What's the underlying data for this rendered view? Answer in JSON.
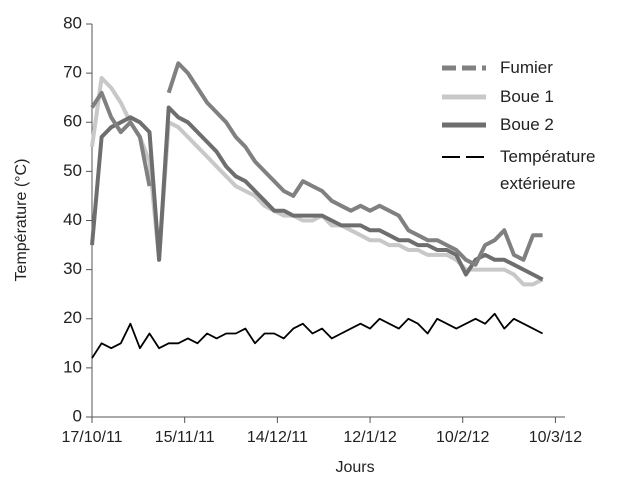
{
  "chart_data": {
    "type": "line",
    "xlabel": "Jours",
    "ylabel": "Température (°C)",
    "x": [
      "2011-10-17",
      "2011-10-20",
      "2011-10-23",
      "2011-10-26",
      "2011-10-29",
      "2011-11-01",
      "2011-11-04",
      "2011-11-07",
      "2011-11-10",
      "2011-11-13",
      "2011-11-16",
      "2011-11-19",
      "2011-11-22",
      "2011-11-25",
      "2011-11-28",
      "2011-12-01",
      "2011-12-04",
      "2011-12-07",
      "2011-12-10",
      "2011-12-13",
      "2011-12-16",
      "2011-12-19",
      "2011-12-22",
      "2011-12-25",
      "2011-12-28",
      "2011-12-31",
      "2012-01-03",
      "2012-01-06",
      "2012-01-09",
      "2012-01-12",
      "2012-01-15",
      "2012-01-18",
      "2012-01-21",
      "2012-01-24",
      "2012-01-27",
      "2012-01-30",
      "2012-02-02",
      "2012-02-05",
      "2012-02-08",
      "2012-02-11",
      "2012-02-14",
      "2012-02-17",
      "2012-02-20",
      "2012-02-23",
      "2012-02-26",
      "2012-02-29",
      "2012-03-03",
      "2012-03-06"
    ],
    "series": [
      {
        "name": "Fumier",
        "color": "#808080",
        "dash": true,
        "values": [
          63,
          66,
          61,
          58,
          60,
          57,
          47,
          null,
          66,
          72,
          70,
          67,
          64,
          62,
          60,
          57,
          55,
          52,
          50,
          48,
          46,
          45,
          48,
          47,
          46,
          44,
          43,
          42,
          43,
          42,
          43,
          42,
          41,
          38,
          37,
          36,
          36,
          35,
          34,
          32,
          31,
          35,
          36,
          38,
          33,
          32,
          37,
          37
        ]
      },
      {
        "name": "Boue 1",
        "color": "#c8c8c8",
        "values": [
          55,
          69,
          67,
          64,
          60,
          57,
          52,
          32,
          60,
          59,
          57,
          55,
          53,
          51,
          49,
          47,
          46,
          45,
          43,
          42,
          41,
          41,
          40,
          40,
          41,
          39,
          39,
          38,
          37,
          36,
          36,
          35,
          35,
          34,
          34,
          33,
          33,
          33,
          32,
          30,
          30,
          30,
          30,
          30,
          29,
          27,
          27,
          28
        ]
      },
      {
        "name": "Boue 2",
        "color": "#6e6e6e",
        "values": [
          35,
          57,
          59,
          60,
          61,
          60,
          58,
          32,
          63,
          61,
          60,
          58,
          56,
          54,
          51,
          49,
          48,
          46,
          44,
          42,
          42,
          41,
          41,
          41,
          41,
          40,
          39,
          39,
          39,
          38,
          38,
          37,
          36,
          36,
          35,
          35,
          34,
          34,
          33,
          29,
          32,
          33,
          32,
          32,
          31,
          30,
          29,
          28
        ]
      },
      {
        "name": "Température extérieure",
        "color": "#000000",
        "dash": true,
        "values": [
          12,
          15,
          14,
          15,
          19,
          14,
          17,
          14,
          15,
          15,
          16,
          15,
          17,
          16,
          17,
          17,
          18,
          15,
          17,
          17,
          16,
          18,
          19,
          17,
          18,
          16,
          17,
          18,
          19,
          18,
          20,
          19,
          18,
          20,
          19,
          17,
          20,
          19,
          18,
          19,
          20,
          19,
          21,
          18,
          20,
          19,
          18,
          17
        ]
      }
    ],
    "xlim": [
      "2011-10-17",
      "2012-03-13"
    ],
    "xticks": [
      {
        "value": "2011-10-17",
        "label": "17/10/11"
      },
      {
        "value": "2011-11-15",
        "label": "15/11/11"
      },
      {
        "value": "2011-12-14",
        "label": "14/12/11"
      },
      {
        "value": "2012-01-12",
        "label": "12/1/12"
      },
      {
        "value": "2012-02-10",
        "label": "10/2/12"
      },
      {
        "value": "2012-03-10",
        "label": "10/3/12"
      }
    ],
    "ylim": [
      0,
      80
    ],
    "yticks": [
      0,
      10,
      20,
      30,
      40,
      50,
      60,
      70,
      80
    ]
  }
}
